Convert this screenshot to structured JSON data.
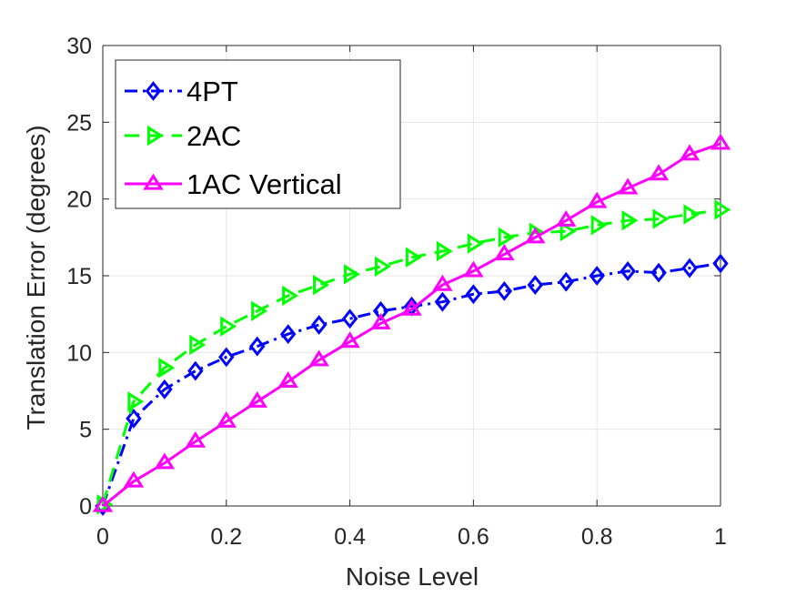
{
  "chart_data": {
    "type": "line",
    "title": "",
    "xlabel": "Noise Level",
    "ylabel": "Translation Error (degrees)",
    "xlim": [
      0,
      1
    ],
    "ylim": [
      0,
      30
    ],
    "xticks": [
      0,
      0.2,
      0.4,
      0.6,
      0.8,
      1
    ],
    "xtick_labels": [
      "0",
      "0.2",
      "0.4",
      "0.6",
      "0.8",
      "1"
    ],
    "yticks": [
      0,
      5,
      10,
      15,
      20,
      25,
      30
    ],
    "ytick_labels": [
      "0",
      "5",
      "10",
      "15",
      "20",
      "25",
      "30"
    ],
    "grid": true,
    "legend_position": "top-left",
    "x": [
      0,
      0.05,
      0.1,
      0.15,
      0.2,
      0.25,
      0.3,
      0.35,
      0.4,
      0.45,
      0.5,
      0.55,
      0.6,
      0.65,
      0.7,
      0.75,
      0.8,
      0.85,
      0.9,
      0.95,
      1
    ],
    "series": [
      {
        "name": "4PT",
        "color": "#0000ff",
        "line_style": "dashdot",
        "marker": "diamond",
        "values": [
          0,
          5.7,
          7.6,
          8.8,
          9.7,
          10.4,
          11.2,
          11.8,
          12.2,
          12.7,
          13.0,
          13.3,
          13.8,
          14.0,
          14.4,
          14.6,
          15.0,
          15.3,
          15.2,
          15.5,
          15.8
        ]
      },
      {
        "name": "2AC",
        "color": "#00ff00",
        "line_style": "dashed",
        "marker": "triangle-right",
        "values": [
          0.1,
          6.8,
          9.0,
          10.5,
          11.7,
          12.7,
          13.7,
          14.4,
          15.1,
          15.6,
          16.2,
          16.6,
          17.1,
          17.5,
          17.8,
          17.9,
          18.3,
          18.6,
          18.7,
          19.0,
          19.3
        ]
      },
      {
        "name": "1AC Vertical",
        "color": "#ff00ff",
        "line_style": "solid",
        "marker": "triangle-up",
        "values": [
          0,
          1.6,
          2.8,
          4.2,
          5.5,
          6.8,
          8.1,
          9.5,
          10.7,
          11.9,
          12.8,
          14.4,
          15.3,
          16.4,
          17.5,
          18.6,
          19.8,
          20.7,
          21.6,
          22.9,
          23.6
        ]
      }
    ]
  }
}
